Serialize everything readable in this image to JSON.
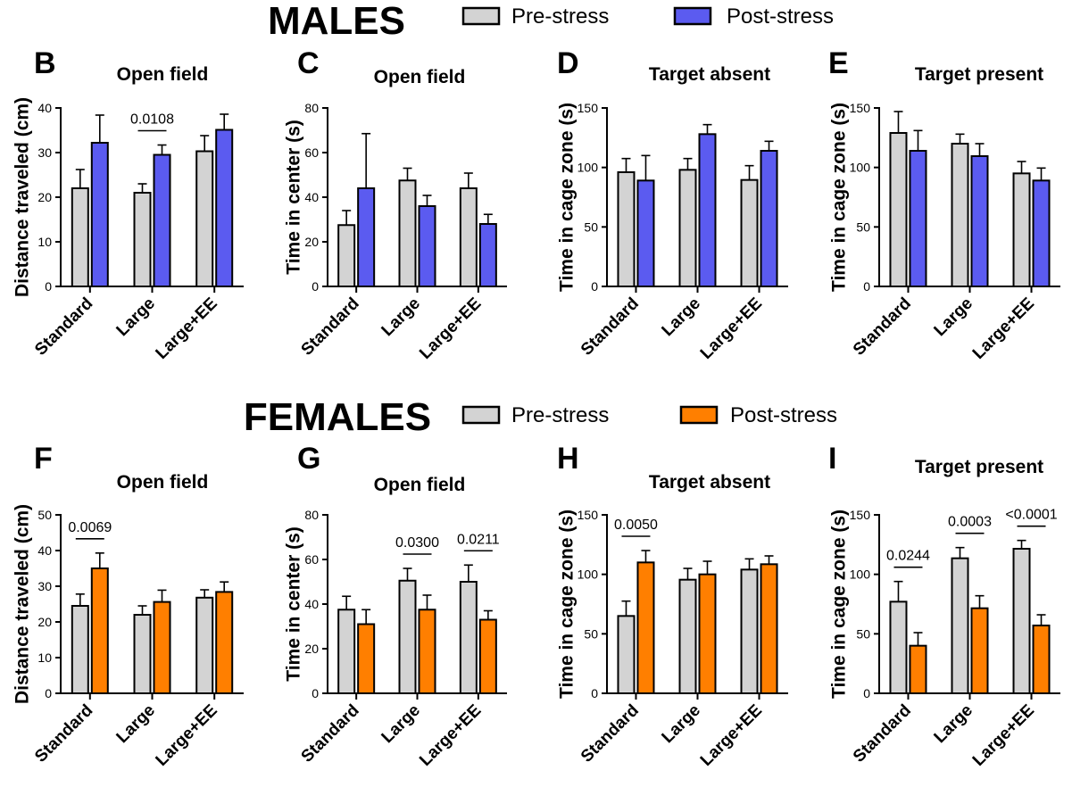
{
  "groups": [
    {
      "title": "MALES",
      "legend": [
        {
          "label": "Pre-stress",
          "color": "#d3d3d3"
        },
        {
          "label": "Post-stress",
          "color": "#5b5bf0"
        }
      ]
    },
    {
      "title": "FEMALES",
      "legend": [
        {
          "label": "Pre-stress",
          "color": "#d3d3d3"
        },
        {
          "label": "Post-stress",
          "color": "#ff7f00"
        }
      ]
    }
  ],
  "chart_data": [
    {
      "panel": "B",
      "type": "bar",
      "title": "Open field",
      "ylabel": "Distance traveled (cm)",
      "ylim": [
        0,
        40
      ],
      "yticks": [
        0,
        10,
        20,
        30,
        40
      ],
      "categories": [
        "Standard",
        "Large",
        "Large+EE"
      ],
      "series": [
        {
          "name": "Pre-stress",
          "color": "#d3d3d3",
          "values": [
            22,
            21,
            30.3
          ],
          "errors": [
            4.2,
            2.0,
            3.5
          ]
        },
        {
          "name": "Post-stress",
          "color": "#5b5bf0",
          "values": [
            32.2,
            29.5,
            35.1
          ],
          "errors": [
            6.2,
            2.2,
            3.5
          ]
        }
      ],
      "annotations": [
        {
          "category": 1,
          "text": "0.0108"
        }
      ]
    },
    {
      "panel": "C",
      "type": "bar",
      "title": "Open field",
      "ylabel": "Time in center (s)",
      "ylim": [
        0,
        80
      ],
      "yticks": [
        0,
        20,
        40,
        60,
        80
      ],
      "categories": [
        "Standard",
        "Large",
        "Large+EE"
      ],
      "series": [
        {
          "name": "Pre-stress",
          "color": "#d3d3d3",
          "values": [
            27.5,
            47.5,
            44
          ],
          "errors": [
            6.5,
            5.5,
            6.8
          ]
        },
        {
          "name": "Post-stress",
          "color": "#5b5bf0",
          "values": [
            44,
            36,
            28
          ],
          "errors": [
            24.5,
            4.8,
            4.3
          ]
        }
      ],
      "annotations": []
    },
    {
      "panel": "D",
      "type": "bar",
      "title": "Target absent",
      "ylabel": "Time in cage zone (s)",
      "ylim": [
        0,
        150
      ],
      "yticks": [
        0,
        50,
        100,
        150
      ],
      "categories": [
        "Standard",
        "Large",
        "Large+EE"
      ],
      "series": [
        {
          "name": "Pre-stress",
          "color": "#d3d3d3",
          "values": [
            96,
            98,
            89.5
          ],
          "errors": [
            11.5,
            9.5,
            12
          ]
        },
        {
          "name": "Post-stress",
          "color": "#5b5bf0",
          "values": [
            89,
            128,
            114
          ],
          "errors": [
            21,
            8,
            8
          ]
        }
      ],
      "annotations": []
    },
    {
      "panel": "E",
      "type": "bar",
      "title": "Target present",
      "ylabel": "Time in cage zone (s)",
      "ylim": [
        0,
        150
      ],
      "yticks": [
        0,
        50,
        100,
        150
      ],
      "categories": [
        "Standard",
        "Large",
        "Large+EE"
      ],
      "series": [
        {
          "name": "Pre-stress",
          "color": "#d3d3d3",
          "values": [
            129,
            120,
            95
          ],
          "errors": [
            18,
            8,
            10
          ]
        },
        {
          "name": "Post-stress",
          "color": "#5b5bf0",
          "values": [
            114,
            109.5,
            89
          ],
          "errors": [
            17,
            10.5,
            10.5
          ]
        }
      ],
      "annotations": []
    },
    {
      "panel": "F",
      "type": "bar",
      "title": "Open field",
      "ylabel": "Distance traveled (cm)",
      "ylim": [
        0,
        50
      ],
      "yticks": [
        0,
        10,
        20,
        30,
        40,
        50
      ],
      "categories": [
        "Standard",
        "Large",
        "Large+EE"
      ],
      "series": [
        {
          "name": "Pre-stress",
          "color": "#d3d3d3",
          "values": [
            24.5,
            22,
            26.8
          ],
          "errors": [
            3.3,
            2.5,
            2.2
          ]
        },
        {
          "name": "Post-stress",
          "color": "#ff7f00",
          "values": [
            35,
            25.6,
            28.4
          ],
          "errors": [
            4.3,
            3.3,
            2.8
          ]
        }
      ],
      "annotations": [
        {
          "category": 0,
          "text": "0.0069"
        }
      ]
    },
    {
      "panel": "G",
      "type": "bar",
      "title": "Open field",
      "ylabel": "Time in center (s)",
      "ylim": [
        0,
        80
      ],
      "yticks": [
        0,
        20,
        40,
        60,
        80
      ],
      "categories": [
        "Standard",
        "Large",
        "Large+EE"
      ],
      "series": [
        {
          "name": "Pre-stress",
          "color": "#d3d3d3",
          "values": [
            37.5,
            50.5,
            50
          ],
          "errors": [
            6,
            5.5,
            7.5
          ]
        },
        {
          "name": "Post-stress",
          "color": "#ff7f00",
          "values": [
            31,
            37.5,
            33
          ],
          "errors": [
            6.5,
            6.5,
            4
          ]
        }
      ],
      "annotations": [
        {
          "category": 1,
          "text": "0.0300"
        },
        {
          "category": 2,
          "text": "0.0211"
        }
      ]
    },
    {
      "panel": "H",
      "type": "bar",
      "title": "Target absent",
      "ylabel": "Time in cage zone (s)",
      "ylim": [
        0,
        150
      ],
      "yticks": [
        0,
        50,
        100,
        150
      ],
      "categories": [
        "Standard",
        "Large",
        "Large+EE"
      ],
      "series": [
        {
          "name": "Pre-stress",
          "color": "#d3d3d3",
          "values": [
            65,
            95.5,
            104
          ],
          "errors": [
            12.5,
            9.5,
            9
          ]
        },
        {
          "name": "Post-stress",
          "color": "#ff7f00",
          "values": [
            110,
            100,
            108.5
          ],
          "errors": [
            10,
            11,
            7
          ]
        }
      ],
      "annotations": [
        {
          "category": 0,
          "text": "0.0050"
        }
      ]
    },
    {
      "panel": "I",
      "type": "bar",
      "title": "Target present",
      "ylabel": "Time in cage zone (s)",
      "ylim": [
        0,
        150
      ],
      "yticks": [
        0,
        50,
        100,
        150
      ],
      "categories": [
        "Standard",
        "Large",
        "Large+EE"
      ],
      "series": [
        {
          "name": "Pre-stress",
          "color": "#d3d3d3",
          "values": [
            77,
            113.5,
            121.5
          ],
          "errors": [
            17,
            9,
            7
          ]
        },
        {
          "name": "Post-stress",
          "color": "#ff7f00",
          "values": [
            40,
            71.5,
            57
          ],
          "errors": [
            11,
            10.5,
            9
          ]
        }
      ],
      "annotations": [
        {
          "category": 0,
          "text": "0.0244"
        },
        {
          "category": 1,
          "text": "0.0003"
        },
        {
          "category": 2,
          "text": "<0.0001"
        }
      ]
    }
  ]
}
